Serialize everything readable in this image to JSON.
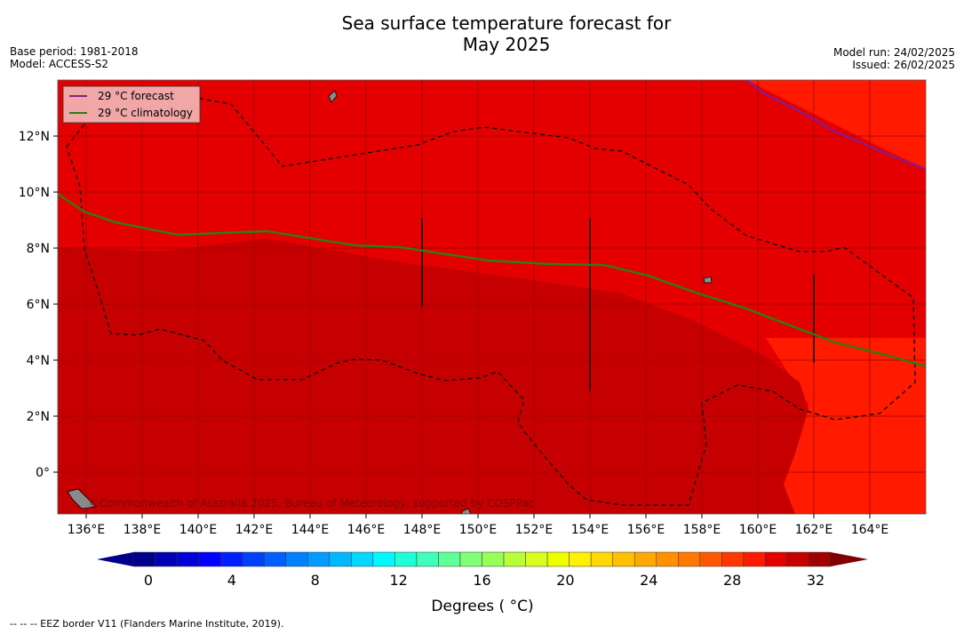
{
  "title_line1": "Sea surface temperature forecast for",
  "title_line2": "May 2025",
  "meta_left": {
    "base_period": "Base period: 1981-2018",
    "model": "Model: ACCESS-S2"
  },
  "meta_right": {
    "model_run": "Model run: 24/02/2025",
    "issued": "Issued: 26/02/2025"
  },
  "legend": {
    "forecast": "29 °C  forecast",
    "climatology": "29 °C  climatology"
  },
  "colors": {
    "forecast": "#8b1a89",
    "climatology": "#2e7d10",
    "sea_warm": "#e40000",
    "sea_hot": "#ff1a00",
    "sea_deep": "#c60000"
  },
  "lon_ticks": [
    "136°E",
    "138°E",
    "140°E",
    "142°E",
    "144°E",
    "146°E",
    "148°E",
    "150°E",
    "152°E",
    "154°E",
    "156°E",
    "158°E",
    "160°E",
    "162°E",
    "164°E"
  ],
  "lat_ticks": [
    "12°N",
    "10°N",
    "8°N",
    "6°N",
    "4°N",
    "2°N",
    "0°"
  ],
  "watermark": "©Commonwealth of Australia 2025, Bureau of Meteorology, supported by COSPPac",
  "colorbar": {
    "ticks": [
      "0",
      "4",
      "8",
      "12",
      "16",
      "20",
      "24",
      "28",
      "32"
    ],
    "label": "Degrees ( °C)",
    "colors": [
      "#00008b",
      "#0000b4",
      "#0000d8",
      "#0000ff",
      "#0020ff",
      "#0040ff",
      "#0060ff",
      "#0080ff",
      "#009cff",
      "#00b8ff",
      "#00d8ff",
      "#00f8ff",
      "#20ffd8",
      "#40ffb8",
      "#60ff98",
      "#80ff78",
      "#98ff58",
      "#b8ff38",
      "#d8ff20",
      "#f0ff00",
      "#fff000",
      "#ffd800",
      "#ffc000",
      "#ffa800",
      "#ff9000",
      "#ff7800",
      "#ff5800",
      "#ff3800",
      "#ff1a00",
      "#e40000",
      "#c60000",
      "#a00000"
    ],
    "under_color": "#00008b",
    "over_color": "#800000"
  },
  "footer": "--  --  -- EEZ border V11 (Flanders Marine Institute, 2019)."
}
